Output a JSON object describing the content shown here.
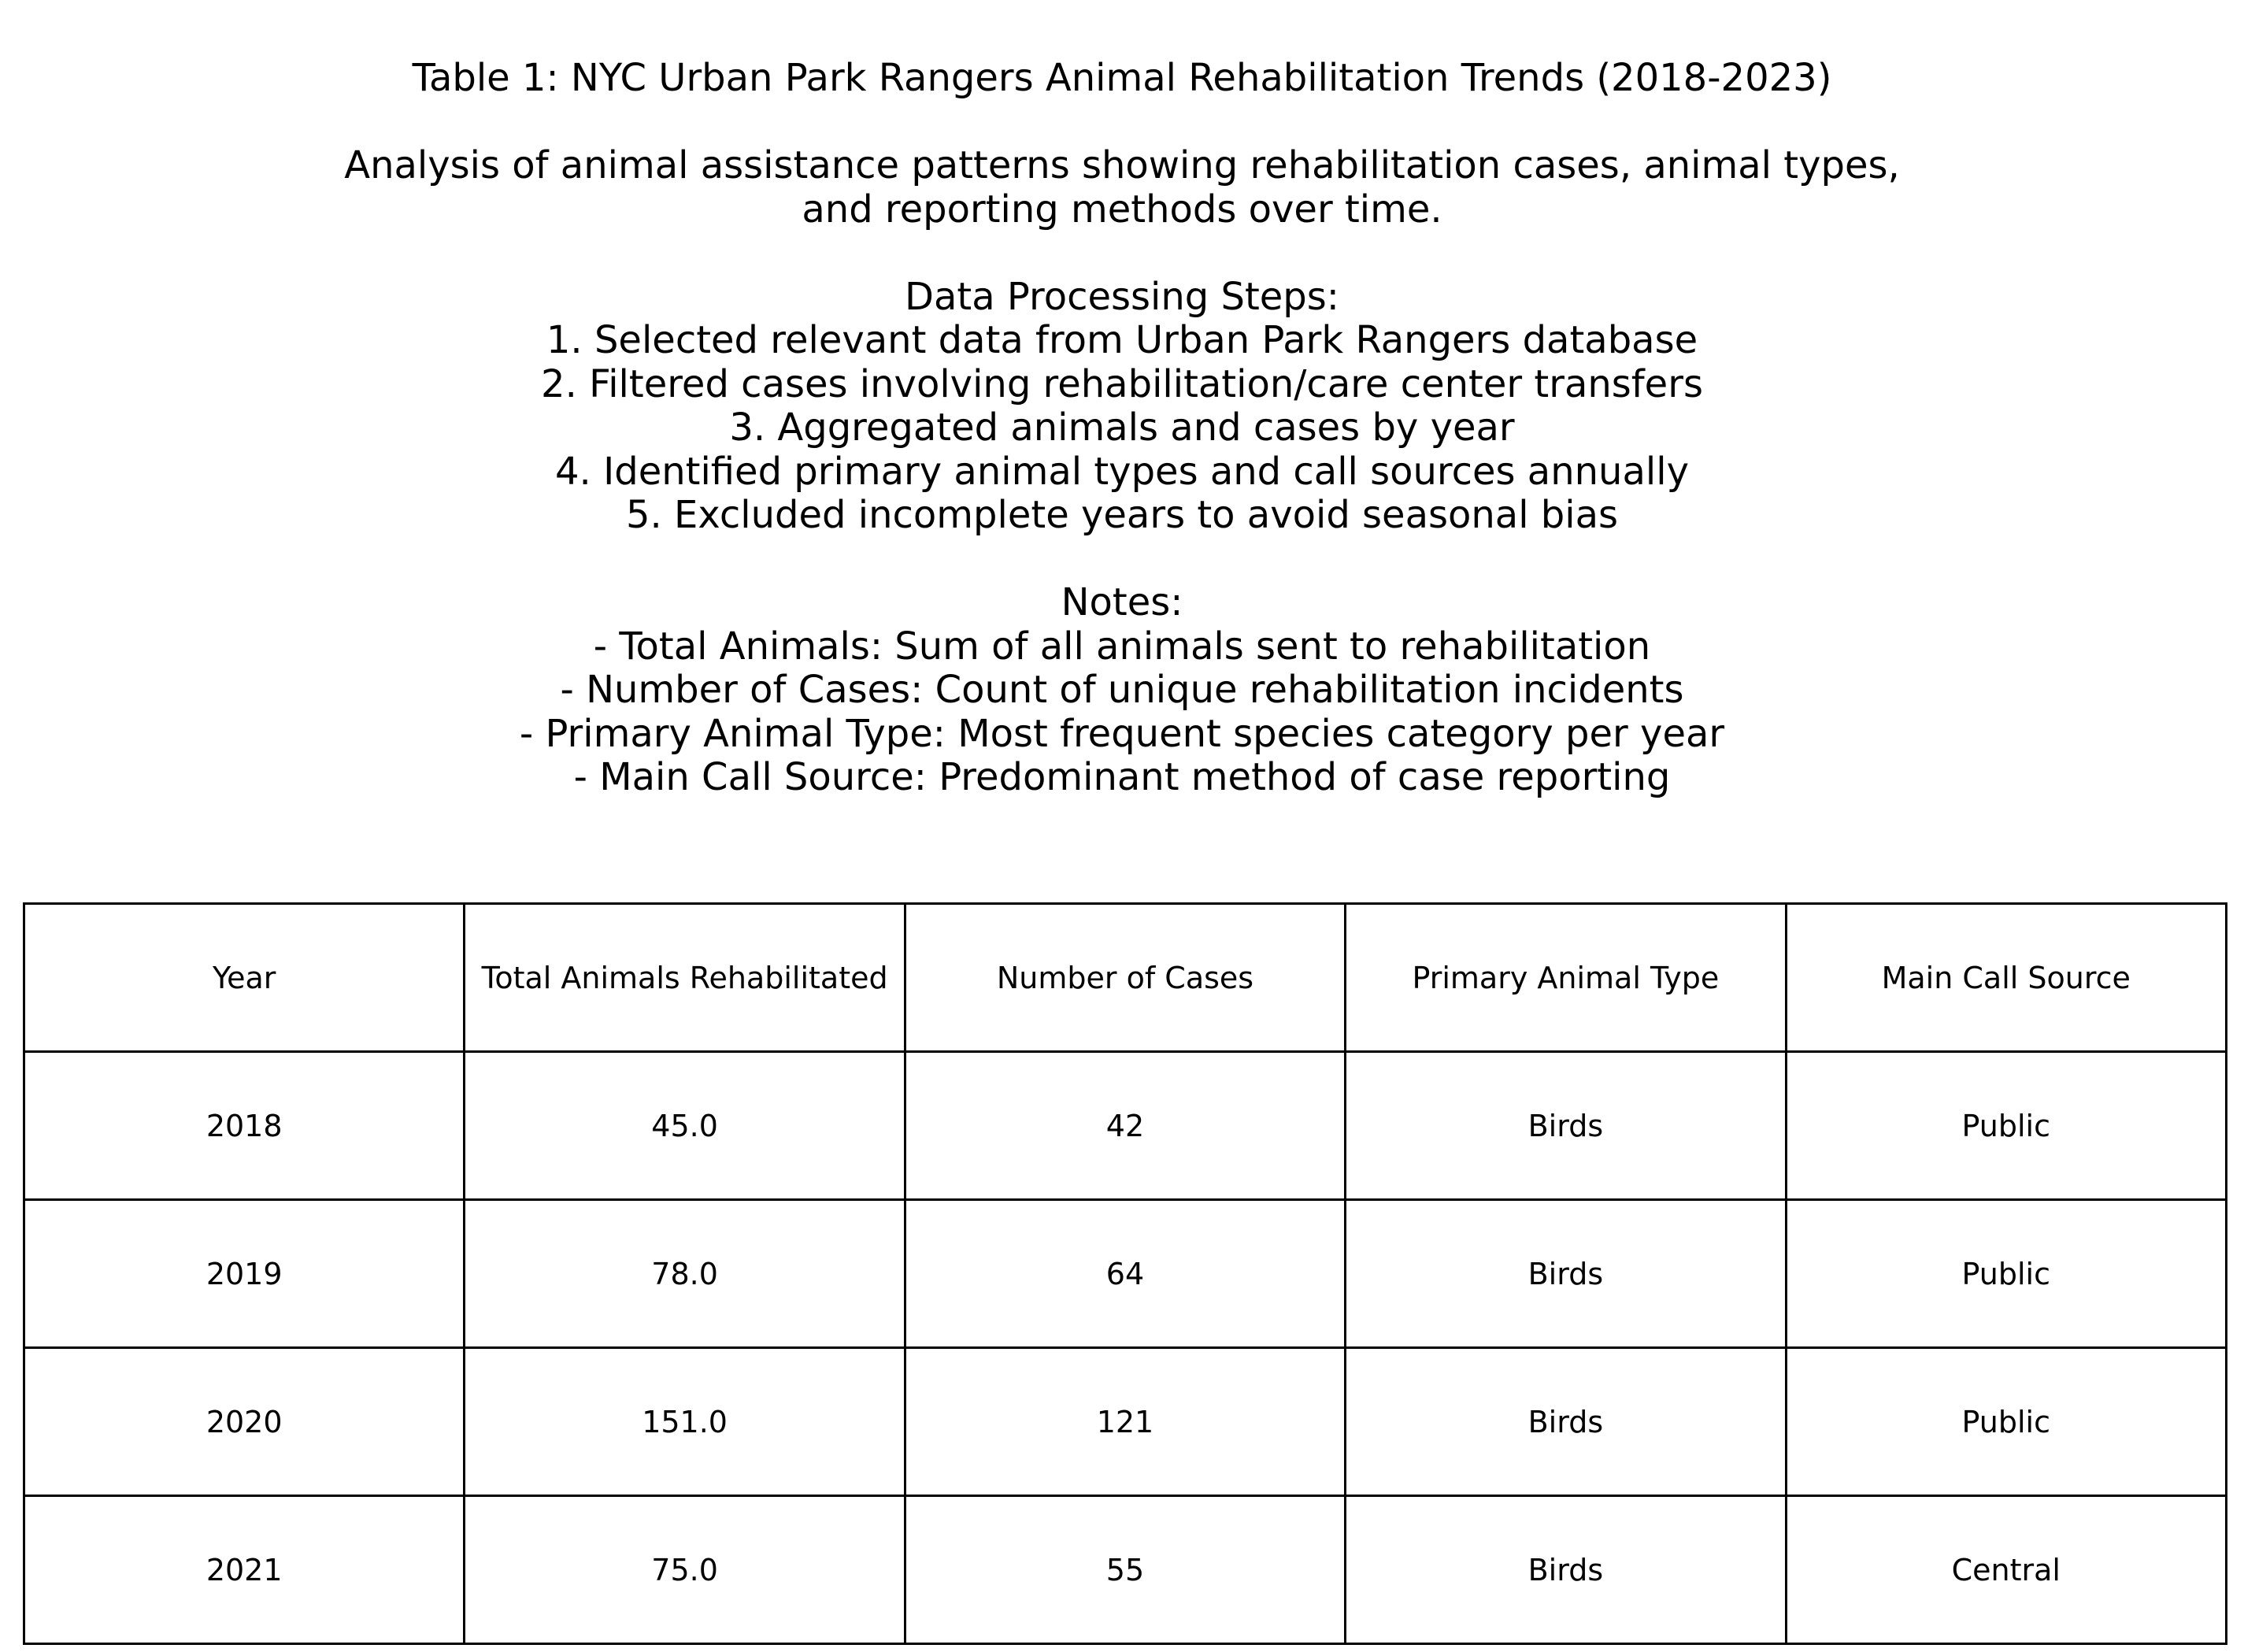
{
  "chart_data": {
    "type": "table",
    "title": "Table 1: NYC Urban Park Rangers Animal Rehabilitation Trends (2018-2023)",
    "subtitle_lines": [
      "Analysis of animal assistance patterns showing rehabilitation cases, animal types,",
      "and reporting methods over time."
    ],
    "steps_heading": "Data Processing Steps:",
    "steps": [
      "1. Selected relevant data from Urban Park Rangers database",
      "2. Filtered cases involving rehabilitation/care center transfers",
      "3. Aggregated animals and cases by year",
      "4. Identified primary animal types and call sources annually",
      "5. Excluded incomplete years to avoid seasonal bias"
    ],
    "notes_heading": "Notes:",
    "notes": [
      "- Total Animals: Sum of all animals sent to rehabilitation",
      "- Number of Cases: Count of unique rehabilitation incidents",
      "- Primary Animal Type: Most frequent species category per year",
      "- Main Call Source: Predominant method of case reporting"
    ],
    "columns": [
      "Year",
      "Total Animals Rehabilitated",
      "Number of Cases",
      "Primary Animal Type",
      "Main Call Source"
    ],
    "rows": [
      [
        "2018",
        "45.0",
        "42",
        "Birds",
        "Public"
      ],
      [
        "2019",
        "78.0",
        "64",
        "Birds",
        "Public"
      ],
      [
        "2020",
        "151.0",
        "121",
        "Birds",
        "Public"
      ],
      [
        "2021",
        "75.0",
        "55",
        "Birds",
        "Central"
      ]
    ]
  }
}
